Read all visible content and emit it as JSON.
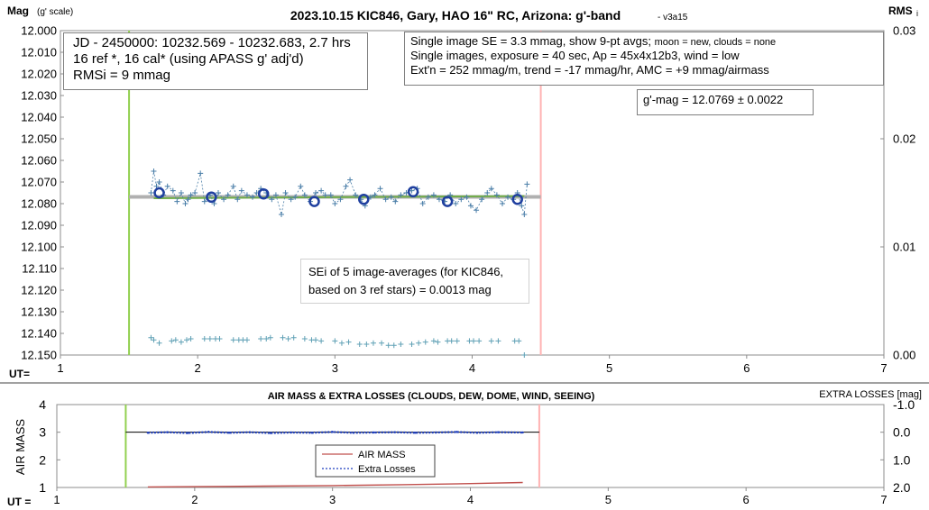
{
  "chart_data": [
    {
      "type": "scatter",
      "title": "2023.10.15 KIC846, Gary, HAO 16\" RC, Arizona: g'-band",
      "version": "- v3a15",
      "ylabel": "Mag",
      "ylabel_unit": "(g' scale)",
      "y2label": "RMS",
      "y2label_sub": "i",
      "xlabel": "UT=",
      "xlim": [
        1,
        7
      ],
      "ylim": [
        12.0,
        12.15
      ],
      "y_reversed": true,
      "y2lim": [
        0.0,
        0.03
      ],
      "x_ticks": [
        "1",
        "2",
        "3",
        "4",
        "5",
        "6",
        "7"
      ],
      "y_ticks": [
        "12.000",
        "12.010",
        "12.020",
        "12.030",
        "12.040",
        "12.050",
        "12.060",
        "12.070",
        "12.080",
        "12.090",
        "12.100",
        "12.110",
        "12.120",
        "12.130",
        "12.140",
        "12.150"
      ],
      "y2_ticks": [
        "0.03",
        "0.02",
        "0.01",
        "0.00"
      ],
      "grid": false,
      "vertical_markers": [
        {
          "x": 1.5,
          "color": "#92d050"
        },
        {
          "x": 4.5,
          "color": "#ffb3b3"
        }
      ],
      "trend_lines": [
        {
          "x": [
            1.5,
            4.5
          ],
          "y": [
            12.0769,
            12.0769
          ],
          "color": "#b0b0b0"
        },
        {
          "x": [
            1.68,
            4.38
          ],
          "y": [
            12.0775,
            12.0765
          ],
          "color": "#70ad47"
        }
      ],
      "series": [
        {
          "kind": "individual",
          "color": "#4a7ea8",
          "x": [
            1.66,
            1.68,
            1.7,
            1.72,
            1.75,
            1.78,
            1.82,
            1.85,
            1.88,
            1.91,
            1.93,
            1.95,
            1.98,
            2.02,
            2.05,
            2.09,
            2.12,
            2.15,
            2.19,
            2.22,
            2.26,
            2.29,
            2.32,
            2.36,
            2.4,
            2.43,
            2.46,
            2.5,
            2.54,
            2.57,
            2.61,
            2.64,
            2.68,
            2.71,
            2.75,
            2.78,
            2.82,
            2.86,
            2.9,
            2.93,
            2.97,
            3.0,
            3.04,
            3.08,
            3.11,
            3.15,
            3.19,
            3.22,
            3.26,
            3.29,
            3.33,
            3.37,
            3.41,
            3.44,
            3.48,
            3.52,
            3.56,
            3.6,
            3.64,
            3.68,
            3.72,
            3.76,
            3.8,
            3.84,
            3.88,
            3.92,
            3.96,
            3.99,
            4.03,
            4.07,
            4.11,
            4.14,
            4.18,
            4.22,
            4.26,
            4.3,
            4.33,
            4.36,
            4.38,
            4.4
          ],
          "y": [
            12.075,
            12.065,
            12.072,
            12.07,
            12.076,
            12.072,
            12.074,
            12.079,
            12.075,
            12.08,
            12.078,
            12.076,
            12.075,
            12.066,
            12.079,
            12.076,
            12.08,
            12.075,
            12.078,
            12.076,
            12.072,
            12.078,
            12.074,
            12.076,
            12.077,
            12.075,
            12.073,
            12.075,
            12.078,
            12.076,
            12.085,
            12.075,
            12.078,
            12.077,
            12.072,
            12.076,
            12.079,
            12.075,
            12.074,
            12.076,
            12.076,
            12.08,
            12.078,
            12.072,
            12.069,
            12.076,
            12.078,
            12.081,
            12.077,
            12.076,
            12.073,
            12.078,
            12.077,
            12.079,
            12.076,
            12.075,
            12.074,
            12.073,
            12.08,
            12.077,
            12.076,
            12.078,
            12.079,
            12.076,
            12.08,
            12.078,
            12.077,
            12.081,
            12.083,
            12.078,
            12.075,
            12.073,
            12.076,
            12.08,
            12.077,
            12.078,
            12.075,
            12.081,
            12.085,
            12.071
          ]
        },
        {
          "kind": "9-pt averages",
          "color": "#1f3f9f",
          "x": [
            1.72,
            2.1,
            2.48,
            2.85,
            3.21,
            3.57,
            3.82,
            4.33
          ],
          "y": [
            12.075,
            12.077,
            12.0755,
            12.079,
            12.078,
            12.0745,
            12.079,
            12.078
          ]
        },
        {
          "kind": "RMSi",
          "axis": "right",
          "color": "#5fa0b5",
          "x": [
            1.66,
            1.68,
            1.72,
            1.81,
            1.84,
            1.88,
            1.92,
            1.95,
            2.05,
            2.09,
            2.13,
            2.16,
            2.26,
            2.3,
            2.33,
            2.36,
            2.46,
            2.5,
            2.53,
            2.62,
            2.66,
            2.7,
            2.78,
            2.83,
            2.86,
            2.9,
            3.0,
            3.05,
            3.1,
            3.18,
            3.23,
            3.28,
            3.34,
            3.39,
            3.43,
            3.48,
            3.56,
            3.61,
            3.66,
            3.72,
            3.75,
            3.82,
            3.85,
            3.89,
            3.98,
            4.01,
            4.05,
            4.14,
            4.19,
            4.31,
            4.34,
            4.38
          ],
          "y": [
            0.0016,
            0.0014,
            0.0011,
            0.0013,
            0.0014,
            0.0012,
            0.0014,
            0.0015,
            0.0015,
            0.0015,
            0.0015,
            0.0015,
            0.0014,
            0.0014,
            0.0014,
            0.0014,
            0.0015,
            0.0015,
            0.0016,
            0.0016,
            0.0015,
            0.0016,
            0.0015,
            0.0014,
            0.0014,
            0.0013,
            0.0013,
            0.0011,
            0.0012,
            0.001,
            0.001,
            0.0011,
            0.0011,
            0.0009,
            0.0009,
            0.001,
            0.001,
            0.0011,
            0.0012,
            0.0013,
            0.0012,
            0.0013,
            0.0013,
            0.0013,
            0.0013,
            0.0013,
            0.0013,
            0.0013,
            0.0013,
            0.0013,
            0.0013,
            0.0
          ]
        }
      ],
      "annotations": {
        "info_left": [
          "JD - 2450000: 10232.569 - 10232.683, 2.7 hrs",
          "16 ref *, 16 cal* (using APASS g' adj'd)",
          "RMSi = 9 mmag"
        ],
        "info_right_line1_main": "Single image SE = 3.3 mmag, show  9-pt avgs;",
        "info_right_line1_small": "moon = new, clouds = none",
        "info_right": [
          "Single images, exposure = 40 sec, Ap = 45x4x12b3, wind = low",
          "Ext'n = 252 mmag/m, trend = -17 mmag/hr, AMC = +9 mmag/airmass"
        ],
        "gmag": "g'-mag = 12.0769 ± 0.0022",
        "sei": [
          "SEi of 5 image-averages (for KIC846,",
          "based on 3 ref stars) = 0.0013 mag"
        ]
      }
    },
    {
      "type": "line",
      "title": "AIR MASS & EXTRA LOSSES (CLOUDS, DEW, DOME, WIND, SEEING)",
      "ylabel": "AIR MASS",
      "y2label": "EXTRA LOSSES [mag]",
      "xlabel": "UT =",
      "xlim": [
        1,
        7
      ],
      "ylim": [
        1,
        4
      ],
      "y2lim": [
        -1.0,
        2.0
      ],
      "y2_reversed": true,
      "x_ticks": [
        "1",
        "2",
        "3",
        "4",
        "5",
        "6",
        "7"
      ],
      "y_ticks": [
        "4",
        "3",
        "2",
        "1"
      ],
      "y2_ticks": [
        "-1.0",
        "0.0",
        "1.0",
        "2.0"
      ],
      "grid": false,
      "vertical_markers": [
        {
          "x": 1.5,
          "color": "#92d050"
        },
        {
          "x": 4.5,
          "color": "#ffb3b3"
        }
      ],
      "legend": {
        "placement": "center",
        "entries": [
          "AIR MASS",
          "Extra Losses"
        ]
      },
      "series": [
        {
          "name": "AIR MASS",
          "axis": "left",
          "color": "#c0504d",
          "x": [
            1.66,
            2.0,
            2.5,
            3.0,
            3.5,
            4.0,
            4.38
          ],
          "y": [
            1.02,
            1.03,
            1.05,
            1.07,
            1.1,
            1.14,
            1.18
          ]
        },
        {
          "name": "Extra Losses",
          "axis": "right",
          "color": "#1f3fbf",
          "x": [
            1.66,
            1.8,
            1.95,
            2.1,
            2.25,
            2.4,
            2.55,
            2.7,
            2.85,
            3.0,
            3.15,
            3.3,
            3.45,
            3.6,
            3.75,
            3.9,
            4.05,
            4.2,
            4.38
          ],
          "y": [
            0.02,
            0.0,
            0.03,
            -0.01,
            0.02,
            0.0,
            0.03,
            0.01,
            0.02,
            -0.01,
            0.02,
            0.01,
            0.0,
            0.02,
            0.01,
            -0.01,
            0.02,
            0.0,
            0.01
          ]
        }
      ]
    }
  ]
}
